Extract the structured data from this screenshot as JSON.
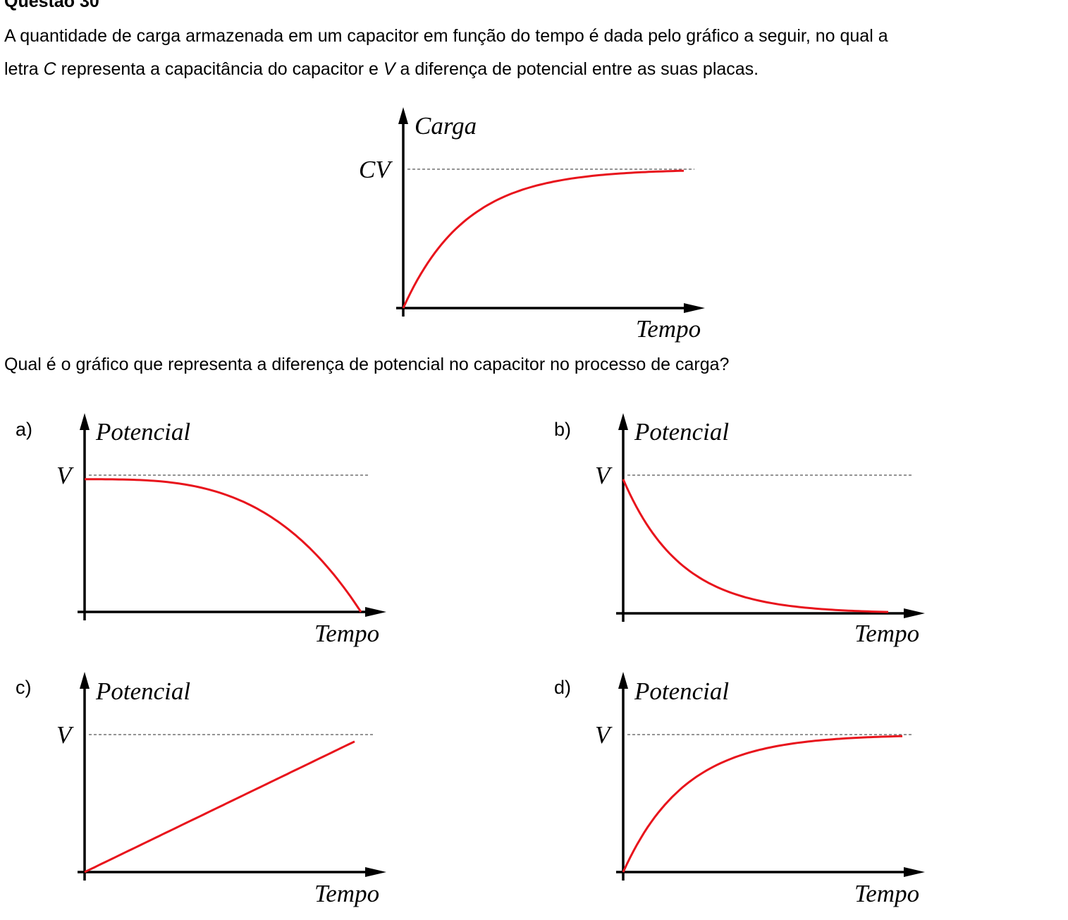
{
  "question": {
    "title": "Questão 30",
    "statement_line1": "A quantidade de carga armazenada em um capacitor em função do tempo é dada pelo gráfico a seguir, no qual a",
    "statement_line2_pre": "letra ",
    "statement_C": "C",
    "statement_line2_mid": " representa a capacitância do capacitor e ",
    "statement_V": "V",
    "statement_line2_post": " a diferença de potencial entre as suas placas.",
    "prompt": "Qual é o gráfico que representa a diferença de potencial no capacitor no processo de carga?"
  },
  "colors": {
    "curve": "#e8141c",
    "axis": "#000000",
    "dashed": "#555555"
  },
  "chart_data": [
    {
      "id": "main",
      "type": "line",
      "ylabel": "Carga",
      "xlabel": "Tempo",
      "level_label": "CV",
      "shape": "exponential-rise",
      "x": [
        0,
        0.5,
        1,
        1.5,
        2,
        2.5,
        3,
        3.5,
        4,
        4.5,
        5
      ],
      "y": [
        0,
        0.39,
        0.63,
        0.78,
        0.86,
        0.92,
        0.95,
        0.97,
        0.98,
        0.99,
        0.99
      ]
    },
    {
      "id": "a",
      "option_label": "a)",
      "type": "line",
      "ylabel": "Potencial",
      "xlabel": "Tempo",
      "level_label": "V",
      "shape": "concave-fall",
      "x": [
        0,
        0.1,
        0.2,
        0.3,
        0.4,
        0.5,
        0.6,
        0.7,
        0.8,
        0.9,
        1.0
      ],
      "y": [
        0.97,
        0.96,
        0.95,
        0.93,
        0.9,
        0.86,
        0.79,
        0.69,
        0.54,
        0.31,
        0
      ]
    },
    {
      "id": "b",
      "option_label": "b)",
      "type": "line",
      "ylabel": "Potencial",
      "xlabel": "Tempo",
      "level_label": "V",
      "shape": "exponential-decay",
      "x": [
        0,
        0.5,
        1,
        1.5,
        2,
        2.5,
        3,
        3.5,
        4,
        4.5,
        5
      ],
      "y": [
        0.97,
        0.58,
        0.36,
        0.22,
        0.13,
        0.08,
        0.05,
        0.03,
        0.02,
        0.01,
        0
      ]
    },
    {
      "id": "c",
      "option_label": "c)",
      "type": "line",
      "ylabel": "Potencial",
      "xlabel": "Tempo",
      "level_label": "V",
      "shape": "linear",
      "x": [
        0,
        1
      ],
      "y": [
        0,
        0.95
      ]
    },
    {
      "id": "d",
      "option_label": "d)",
      "type": "line",
      "ylabel": "Potencial",
      "xlabel": "Tempo",
      "level_label": "V",
      "shape": "exponential-rise",
      "x": [
        0,
        0.5,
        1,
        1.5,
        2,
        2.5,
        3,
        3.5,
        4,
        4.5,
        5
      ],
      "y": [
        0,
        0.39,
        0.63,
        0.78,
        0.86,
        0.92,
        0.95,
        0.97,
        0.98,
        0.99,
        0.99
      ]
    }
  ]
}
